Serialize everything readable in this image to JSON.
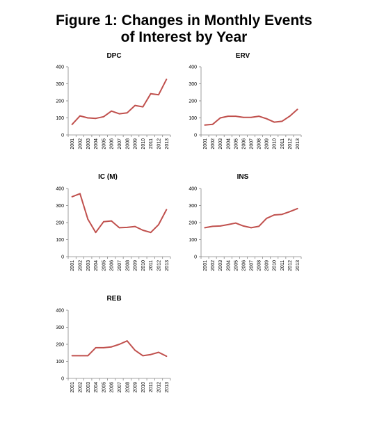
{
  "figure": {
    "title_line1": "Figure 1: Changes in Monthly Events",
    "title_line2": "of Interest by Year"
  },
  "chart_data": [
    {
      "type": "line",
      "title": "DPC",
      "x": [
        "2001",
        "2002",
        "2003",
        "2004",
        "2005",
        "2006",
        "2007",
        "2008",
        "2009",
        "2010",
        "2011",
        "2012",
        "2013"
      ],
      "series": [
        {
          "values": [
            62,
            112,
            100,
            97,
            107,
            140,
            124,
            130,
            173,
            165,
            242,
            236,
            326
          ]
        }
      ],
      "yticks": [
        0,
        100,
        200,
        300,
        400
      ],
      "ylim": [
        0,
        400
      ],
      "color": "#c0504d"
    },
    {
      "type": "line",
      "title": "ERV",
      "x": [
        "2001",
        "2002",
        "2003",
        "2004",
        "2005",
        "2006",
        "2007",
        "2008",
        "2009",
        "2010",
        "2011",
        "2012",
        "2013"
      ],
      "series": [
        {
          "values": [
            58,
            62,
            100,
            110,
            110,
            103,
            103,
            110,
            95,
            75,
            80,
            110,
            150
          ]
        }
      ],
      "yticks": [
        0,
        100,
        200,
        300,
        400
      ],
      "ylim": [
        0,
        400
      ],
      "color": "#c0504d"
    },
    {
      "type": "line",
      "title": "IC (M)",
      "x": [
        "2001",
        "2002",
        "2003",
        "2004",
        "2005",
        "2006",
        "2007",
        "2008",
        "2009",
        "2010",
        "2011",
        "2012",
        "2013"
      ],
      "series": [
        {
          "values": [
            352,
            370,
            220,
            142,
            205,
            210,
            170,
            172,
            177,
            155,
            142,
            188,
            276
          ]
        }
      ],
      "yticks": [
        0,
        100,
        200,
        300,
        400
      ],
      "ylim": [
        0,
        400
      ],
      "color": "#c0504d"
    },
    {
      "type": "line",
      "title": "INS",
      "x": [
        "2001",
        "2002",
        "2003",
        "2004",
        "2005",
        "2006",
        "2007",
        "2008",
        "2009",
        "2010",
        "2011",
        "2012",
        "2013"
      ],
      "series": [
        {
          "values": [
            170,
            178,
            180,
            188,
            197,
            180,
            170,
            178,
            225,
            245,
            248,
            264,
            282
          ]
        }
      ],
      "yticks": [
        0,
        100,
        200,
        300,
        400
      ],
      "ylim": [
        0,
        400
      ],
      "color": "#c0504d"
    },
    {
      "type": "line",
      "title": "REB",
      "x": [
        "2001",
        "2002",
        "2003",
        "2004",
        "2005",
        "2006",
        "2007",
        "2008",
        "2009",
        "2010",
        "2011",
        "2012",
        "2013"
      ],
      "series": [
        {
          "values": [
            133,
            133,
            133,
            180,
            180,
            185,
            200,
            220,
            165,
            133,
            140,
            153,
            130
          ]
        }
      ],
      "yticks": [
        0,
        100,
        200,
        300,
        400
      ],
      "ylim": [
        0,
        400
      ],
      "color": "#c0504d"
    }
  ]
}
